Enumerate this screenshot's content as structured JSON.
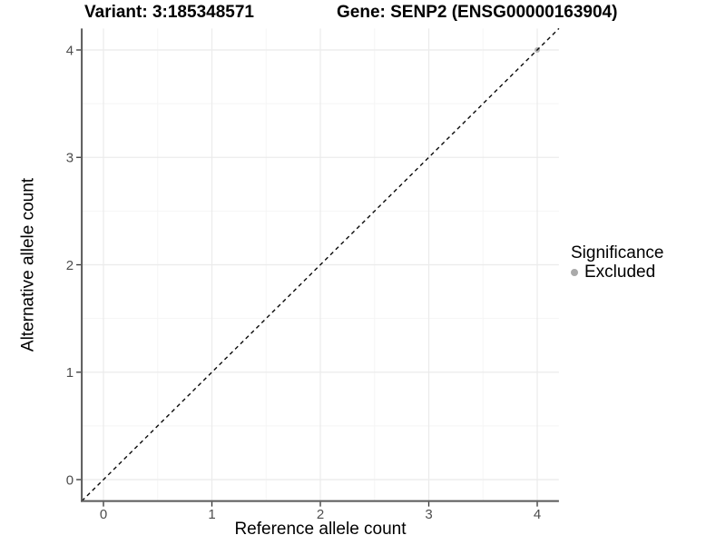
{
  "chart_data": {
    "type": "scatter",
    "title_variant": "Variant: 3:185348571",
    "title_gene": "Gene: SENP2 (ENSG00000163904)",
    "xlabel": "Reference allele count",
    "ylabel": "Alternative allele count",
    "xlim": [
      -0.2,
      4.2
    ],
    "ylim": [
      -0.2,
      4.2
    ],
    "x_ticks": [
      0,
      1,
      2,
      3,
      4
    ],
    "y_ticks": [
      0,
      1,
      2,
      3,
      4
    ],
    "x_tick_labels": [
      "0",
      "1",
      "2",
      "3",
      "4"
    ],
    "y_tick_labels": [
      "0",
      "1",
      "2",
      "3",
      "4"
    ],
    "x_minor": [
      0.5,
      1.5,
      2.5,
      3.5
    ],
    "y_minor": [
      0.5,
      1.5,
      2.5,
      3.5
    ],
    "grid": true,
    "legend_position": "right",
    "legend": {
      "title": "Significance",
      "items": [
        {
          "label": "Excluded",
          "color": "#aaaaaa"
        }
      ]
    },
    "series": [
      {
        "name": "Excluded",
        "color": "#b5b5b5",
        "points": [
          [
            4,
            4
          ]
        ]
      }
    ],
    "reference_line": {
      "type": "identity y=x",
      "from": [
        -0.2,
        -0.2
      ],
      "to": [
        4.2,
        4.2
      ],
      "style": "dashed",
      "color": "#0a0a0a"
    }
  },
  "colors": {
    "background": "#ffffff",
    "grid_major": "#ebebeb",
    "grid_minor": "#f5f5f5",
    "axis_line": "#595959",
    "tick_mark": "#333333",
    "tick_label": "#4d4d4d",
    "point": "#b5b5b5",
    "legend_dot": "#aaaaaa"
  }
}
